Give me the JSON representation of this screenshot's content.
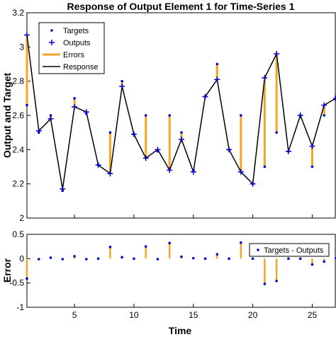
{
  "chart_data": [
    {
      "type": "line",
      "title": "Response of Output Element 1 for Time-Series 1",
      "xlabel": "",
      "ylabel": "Output and Target",
      "xlim": [
        1,
        27
      ],
      "ylim": [
        2,
        3.2
      ],
      "yticks": [
        "2",
        "2.2",
        "2.4",
        "2.6",
        "2.8",
        "3",
        "3.2"
      ],
      "grid": false,
      "legend_position": "top-left",
      "x": [
        1,
        2,
        3,
        4,
        5,
        6,
        7,
        8,
        9,
        10,
        11,
        12,
        13,
        14,
        15,
        16,
        17,
        18,
        19,
        20,
        21,
        22,
        23,
        24,
        25,
        26,
        27
      ],
      "series": [
        {
          "name": "Targets",
          "values": [
            2.66,
            2.5,
            2.6,
            2.16,
            2.7,
            2.61,
            2.31,
            2.5,
            2.8,
            2.49,
            2.6,
            2.39,
            2.6,
            2.5,
            2.28,
            2.71,
            2.9,
            2.4,
            2.6,
            2.2,
            2.3,
            2.5,
            2.39,
            2.6,
            2.3,
            2.6,
            2.71
          ]
        },
        {
          "name": "Outputs",
          "values": [
            3.07,
            2.51,
            2.58,
            2.17,
            2.65,
            2.62,
            2.31,
            2.26,
            2.77,
            2.49,
            2.35,
            2.4,
            2.28,
            2.46,
            2.27,
            2.71,
            2.81,
            2.4,
            2.27,
            2.2,
            2.82,
            2.96,
            2.39,
            2.6,
            2.42,
            2.66,
            2.7
          ]
        },
        {
          "name": "Errors",
          "type": "error-bars"
        },
        {
          "name": "Response",
          "type": "line"
        }
      ]
    },
    {
      "type": "stem",
      "title": "",
      "xlabel": "Time",
      "ylabel": "Error",
      "xlim": [
        1,
        27
      ],
      "ylim": [
        -1,
        0.5
      ],
      "xticks": [
        "5",
        "10",
        "15",
        "20",
        "25"
      ],
      "yticks": [
        "-1",
        "-0.5",
        "0",
        "0.5"
      ],
      "grid": false,
      "legend_position": "top-right",
      "x": [
        1,
        2,
        3,
        4,
        5,
        6,
        7,
        8,
        9,
        10,
        11,
        12,
        13,
        14,
        15,
        16,
        17,
        18,
        19,
        20,
        21,
        22,
        23,
        24,
        25,
        26,
        27
      ],
      "series": [
        {
          "name": "Targets - Outputs",
          "values": [
            -0.41,
            -0.01,
            0.02,
            -0.01,
            0.05,
            -0.01,
            0.0,
            0.24,
            0.03,
            0.0,
            0.25,
            -0.01,
            0.32,
            0.04,
            0.01,
            0.0,
            0.09,
            0.0,
            0.33,
            0.0,
            -0.52,
            -0.46,
            0.0,
            0.0,
            -0.12,
            -0.06,
            0.01
          ]
        }
      ]
    }
  ],
  "colors": {
    "targets": "#0000cc",
    "outputs": "#0000cc",
    "errors": "#f5a623",
    "response": "#000000",
    "axes": "#000000"
  }
}
